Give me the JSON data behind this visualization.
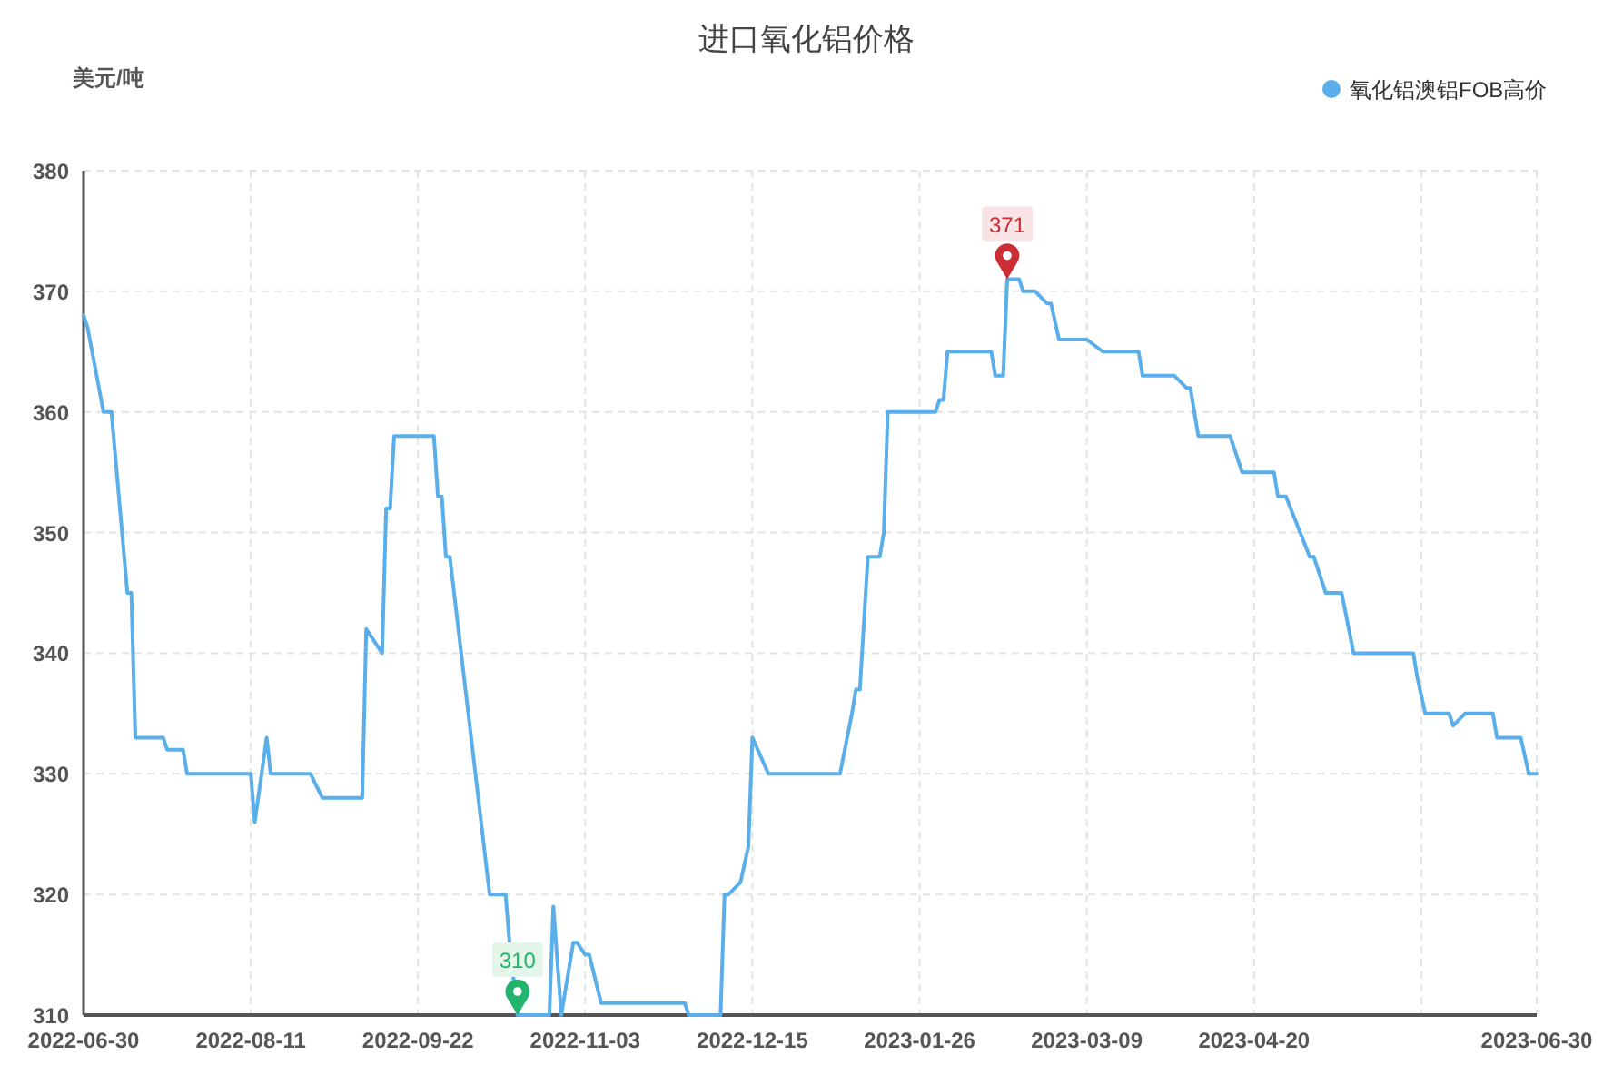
{
  "chart_data": {
    "type": "line",
    "title": "进口氧化铝价格",
    "ylabel": "美元/吨",
    "x": [
      "2022-06-30",
      "2022-07-01",
      "2022-07-05",
      "2022-07-07",
      "2022-07-11",
      "2022-07-12",
      "2022-07-13",
      "2022-07-20",
      "2022-07-21",
      "2022-07-25",
      "2022-07-26",
      "2022-08-11",
      "2022-08-12",
      "2022-08-15",
      "2022-08-16",
      "2022-08-26",
      "2022-08-29",
      "2022-09-08",
      "2022-09-09",
      "2022-09-13",
      "2022-09-14",
      "2022-09-15",
      "2022-09-16",
      "2022-09-26",
      "2022-09-27",
      "2022-09-28",
      "2022-09-29",
      "2022-09-30",
      "2022-10-10",
      "2022-10-14",
      "2022-10-15",
      "2022-10-17",
      "2022-10-25",
      "2022-10-26",
      "2022-10-28",
      "2022-10-31",
      "2022-11-01",
      "2022-11-03",
      "2022-11-04",
      "2022-11-07",
      "2022-11-28",
      "2022-11-29",
      "2022-12-07",
      "2022-12-08",
      "2022-12-09",
      "2022-12-12",
      "2022-12-14",
      "2022-12-15",
      "2022-12-19",
      "2023-01-06",
      "2023-01-09",
      "2023-01-10",
      "2023-01-11",
      "2023-01-13",
      "2023-01-16",
      "2023-01-17",
      "2023-01-18",
      "2023-01-30",
      "2023-01-31",
      "2023-02-01",
      "2023-02-02",
      "2023-02-13",
      "2023-02-14",
      "2023-02-16",
      "2023-02-17",
      "2023-02-20",
      "2023-02-21",
      "2023-02-24",
      "2023-02-27",
      "2023-02-28",
      "2023-03-02",
      "2023-03-09",
      "2023-03-13",
      "2023-03-22",
      "2023-03-23",
      "2023-03-31",
      "2023-04-03",
      "2023-04-04",
      "2023-04-06",
      "2023-04-14",
      "2023-04-17",
      "2023-04-25",
      "2023-04-26",
      "2023-04-28",
      "2023-05-04",
      "2023-05-05",
      "2023-05-08",
      "2023-05-12",
      "2023-05-15",
      "2023-05-30",
      "2023-05-31",
      "2023-06-02",
      "2023-06-08",
      "2023-06-09",
      "2023-06-12",
      "2023-06-19",
      "2023-06-20",
      "2023-06-26",
      "2023-06-28",
      "2023-06-30"
    ],
    "series": [
      {
        "name": "氧化铝澳铝FOB高价",
        "color": "#5aaeea",
        "values": [
          368,
          367,
          360,
          360,
          345,
          345,
          333,
          333,
          332,
          332,
          330,
          330,
          326,
          333,
          330,
          330,
          328,
          328,
          342,
          340,
          352,
          352,
          358,
          358,
          353,
          353,
          348,
          348,
          320,
          320,
          316,
          310,
          310,
          319,
          310,
          316,
          316,
          315,
          315,
          311,
          311,
          310,
          310,
          320,
          320,
          321,
          324,
          333,
          330,
          330,
          335,
          337,
          337,
          348,
          348,
          350,
          360,
          360,
          361,
          361,
          365,
          365,
          363,
          363,
          371,
          371,
          370,
          370,
          369,
          369,
          366,
          366,
          365,
          365,
          363,
          363,
          362,
          362,
          358,
          358,
          355,
          355,
          353,
          353,
          348,
          348,
          345,
          345,
          340,
          340,
          338,
          335,
          335,
          334,
          335,
          335,
          333,
          333,
          330,
          330
        ]
      }
    ],
    "xlim": [
      "2022-06-30",
      "2023-06-30"
    ],
    "xticks": [
      {
        "value": "2022-06-30",
        "label": "2022-06-30"
      },
      {
        "value": "2022-08-11",
        "label": "2022-08-11"
      },
      {
        "value": "2022-09-22",
        "label": "2022-09-22"
      },
      {
        "value": "2022-11-03",
        "label": "2022-11-03"
      },
      {
        "value": "2022-12-15",
        "label": "2022-12-15"
      },
      {
        "value": "2023-01-26",
        "label": "2023-01-26"
      },
      {
        "value": "2023-03-09",
        "label": "2023-03-09"
      },
      {
        "value": "2023-04-20",
        "label": "2023-04-20"
      },
      {
        "value": "2023-06-01",
        "label": null
      },
      {
        "value": "2023-06-30",
        "label": "2023-06-30"
      }
    ],
    "ylim": [
      310,
      380
    ],
    "yticks": [
      310,
      320,
      330,
      340,
      350,
      360,
      370,
      380
    ],
    "grid": true,
    "legend": "top right",
    "annotations": [
      {
        "text": "310",
        "x": "2022-10-17",
        "y": 310
      },
      {
        "text": "371",
        "x": "2023-02-17",
        "y": 371
      }
    ]
  }
}
